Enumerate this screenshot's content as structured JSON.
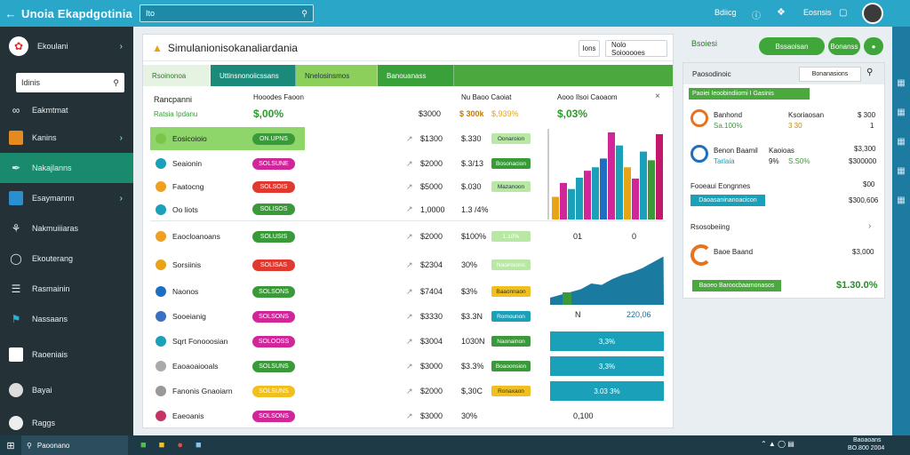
{
  "app": {
    "title": "Unoia  Ekapdgotinia",
    "search_text": "Ito"
  },
  "topbar": {
    "item1": "Bdiicg",
    "item2": "Eosnsis"
  },
  "sidebar": {
    "header": "Ekoulani",
    "search": "Idinis",
    "items": [
      "Eakmtmat",
      "Kanins",
      "Nakajlanns",
      "Esaymannn",
      "Nakmuiiiaras",
      "Ekouterang",
      "Rasmainin",
      "Nassaans",
      "Raoeniais",
      "Bayai",
      "Raggs"
    ]
  },
  "main": {
    "title": "Simulanionisokanaliardania",
    "btn1": "Ions",
    "btn2": "Nolo Soiooooes",
    "tabs": [
      "Rsoinonoa",
      "Uttinsnonoiicssans",
      "Nnelosinsmos",
      "Banouanass"
    ],
    "summary_label": "Rancpanni",
    "summary_sub": "Ratsia Ipdanu",
    "col1": "Hooodes Faoon",
    "col2": "Nu Baoo Caoiat",
    "col3": "Aooo Ilsoi Caoaom",
    "kpi1": "$,00%",
    "kpi2": "$,03%",
    "hdr_v1": "$3000",
    "hdr_v2": "$ 300k",
    "hdr_v3": "$,939%",
    "rows": [
      {
        "name": "Eosicoioio",
        "pill": "ON.UPNS",
        "v1": "$1300",
        "v2": "$.330",
        "tag": "Oonaroion"
      },
      {
        "name": "Seaionin",
        "pill": "SOLSUNE",
        "v1": "$2000",
        "v2": "$.3/13",
        "tag": "Bosonacion"
      },
      {
        "name": "Faatocng",
        "pill": "SOLSOIS",
        "v1": "$5000",
        "v2": "$.030",
        "tag": "Mazanoon"
      },
      {
        "name": "Oo liots",
        "pill": "SOLISOS",
        "v1": "1,0000",
        "v2": "1.3 /4%",
        "tag": ""
      },
      {
        "name": "Eaocloanoans",
        "pill": "SOLUSIS",
        "v1": "$2000",
        "v2": "$100%",
        "tag": "1.10%"
      },
      {
        "name": "Sorsiinis",
        "pill": "SOLISAS",
        "v1": "$2304",
        "v2": "30%",
        "tag": "Naoinsionc"
      },
      {
        "name": "Naonos",
        "pill": "SOLSONS",
        "v1": "$7404",
        "v2": "$3%",
        "tag": "Baaonnaon"
      },
      {
        "name": "Sooeianig",
        "pill": "SOLSONS",
        "v1": "$3330",
        "v2": "$3.3N",
        "tag": "Romounon"
      },
      {
        "name": "Sqrt Fonooosian",
        "pill": "SOLOOSS",
        "v1": "$3004",
        "v2": "1030N",
        "tag": "Naonainon"
      },
      {
        "name": "Eaoaoaiooals",
        "pill": "SOLSUNS",
        "v1": "$3000",
        "v2": "$3.3%",
        "tag": "Boaoonsion"
      },
      {
        "name": "Fanonis Gnaoiarn",
        "pill": "SOLSUNS",
        "v1": "$2000",
        "v2": "$,30C",
        "tag": "Ronaxaon"
      },
      {
        "name": "Eaeoanis",
        "pill": "SOLSONS",
        "v1": "$3000",
        "v2": "30%",
        "tag": ""
      }
    ],
    "chart1_labels": [
      "01",
      "0"
    ],
    "chart2_label_left": "N",
    "chart2_value": "220,06",
    "blue_rows": [
      "3,3%",
      "3,3%",
      "3.03 3%"
    ],
    "last_v": "0,100"
  },
  "right": {
    "top_btn1": "Bssaoisan",
    "top_btn2": "Bonanss",
    "top_label": "Bsoiesi",
    "head": "Paosodinoic",
    "head_btn": "Bonanasions",
    "green_banner": "Paoiei Ieoobindiiomi I Gasinis",
    "r1_name": "Banhond",
    "r1_sub": "Sa.100%",
    "r1_mid": "Ksoriaosan",
    "r1_mid2": "3 30",
    "r1_v": "$ 300",
    "r1_v2": "1",
    "r2_name": "Benon Baamil",
    "r2_sub": "Tarlaia",
    "r2_mid": "Kaoioas",
    "r2_pct": "9%",
    "r2_mid2": "S.S0%",
    "r2_v": "$3,300",
    "r2_v2": "$300000",
    "r3_name": "Fooeaui Eongnnes",
    "r3_tag": "Daoasaninanoacicon",
    "r3_v": "$00",
    "r3_v2": "$300,606",
    "r4_name": "Rsosobeiing",
    "r5_name": "Baoe Baand",
    "r5_v": "$3,000",
    "r6_tag": "Baoeo Baroocbaamonasos",
    "r6_v": "$1.30.0%"
  },
  "taskbar": {
    "search": "Paoonano",
    "time": "Baoaoans",
    "date": "BO.800 2004"
  },
  "chart_data": [
    {
      "type": "bar",
      "values": [
        26,
        42,
        35,
        48,
        56,
        60,
        70,
        100,
        85,
        60,
        47,
        78,
        68,
        98
      ],
      "categories": [
        "",
        "",
        "",
        "",
        "",
        "",
        "",
        "",
        "",
        "",
        "",
        "",
        "",
        ""
      ]
    },
    {
      "type": "area",
      "x": [
        0,
        1,
        2,
        3,
        4,
        5,
        6,
        7,
        8,
        9,
        10,
        11
      ],
      "values": [
        10,
        14,
        18,
        22,
        30,
        28,
        36,
        42,
        46,
        52,
        60,
        68
      ]
    }
  ]
}
